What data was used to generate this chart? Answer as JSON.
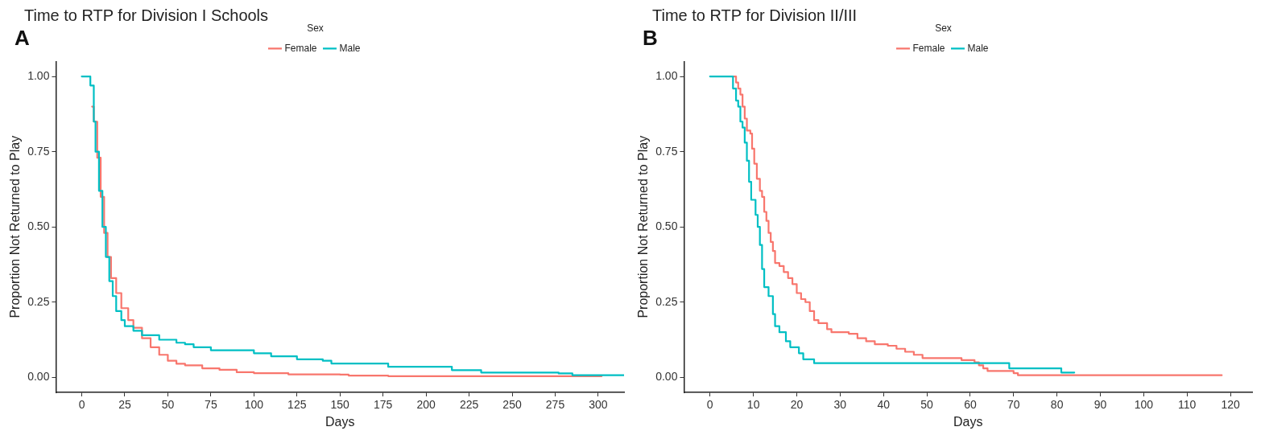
{
  "chart_data": [
    {
      "type": "step",
      "title": "Time to RTP for Division I Schools",
      "annotations": [
        "A"
      ],
      "xlabel": "Days",
      "ylabel": "Proportion Not Returned to Play",
      "legend_title": "Sex",
      "legend": "top",
      "grid": false,
      "xlim": [
        -15,
        315
      ],
      "ylim": [
        -0.05,
        1.05
      ],
      "xticks": [
        0,
        25,
        50,
        75,
        100,
        125,
        150,
        175,
        200,
        225,
        250,
        275,
        300
      ],
      "yticks": [
        {
          "value": 0,
          "label": "0.00"
        },
        {
          "value": 0.25,
          "label": "0.25"
        },
        {
          "value": 0.5,
          "label": "0.50"
        },
        {
          "value": 0.75,
          "label": "0.75"
        },
        {
          "value": 1,
          "label": "1.00"
        }
      ],
      "series": [
        {
          "name": "Female",
          "color": "#f8766d",
          "x": [
            6,
            7,
            9,
            11,
            13,
            15,
            17,
            20,
            23,
            27,
            30,
            35,
            40,
            45,
            50,
            55,
            60,
            70,
            80,
            90,
            100,
            120,
            150,
            155,
            178,
            302
          ],
          "values": [
            0.9,
            0.85,
            0.73,
            0.6,
            0.48,
            0.4,
            0.33,
            0.28,
            0.23,
            0.19,
            0.165,
            0.13,
            0.1,
            0.075,
            0.055,
            0.045,
            0.04,
            0.03,
            0.025,
            0.017,
            0.014,
            0.01,
            0.009,
            0.006,
            0.004,
            0.004
          ]
        },
        {
          "name": "Male",
          "color": "#00bfc4",
          "x": [
            0,
            3,
            5,
            7,
            8,
            10,
            12,
            14,
            16,
            18,
            20,
            23,
            25,
            30,
            35,
            45,
            55,
            60,
            65,
            75,
            95,
            100,
            110,
            125,
            140,
            145,
            178,
            215,
            232,
            277,
            285,
            315
          ],
          "values": [
            1,
            1,
            0.97,
            0.85,
            0.75,
            0.62,
            0.5,
            0.4,
            0.32,
            0.27,
            0.22,
            0.19,
            0.17,
            0.155,
            0.14,
            0.125,
            0.115,
            0.11,
            0.1,
            0.09,
            0.09,
            0.08,
            0.07,
            0.06,
            0.055,
            0.046,
            0.035,
            0.024,
            0.016,
            0.013,
            0.007,
            0.007
          ]
        }
      ]
    },
    {
      "type": "step",
      "title": "Time to RTP for Division II/III",
      "annotations": [
        "B"
      ],
      "xlabel": "Days",
      "ylabel": "Proportion Not Returned to Play",
      "legend_title": "Sex",
      "legend": "top",
      "grid": false,
      "xlim": [
        -6,
        125
      ],
      "ylim": [
        -0.05,
        1.05
      ],
      "xticks": [
        0,
        10,
        20,
        30,
        40,
        50,
        60,
        70,
        80,
        90,
        100,
        110,
        120
      ],
      "yticks": [
        {
          "value": 0,
          "label": "0.00"
        },
        {
          "value": 0.25,
          "label": "0.25"
        },
        {
          "value": 0.5,
          "label": "0.50"
        },
        {
          "value": 0.75,
          "label": "0.75"
        },
        {
          "value": 1,
          "label": "1.00"
        }
      ],
      "series": [
        {
          "name": "Female",
          "color": "#f8766d",
          "x": [
            5.5,
            6,
            6.5,
            7,
            7.5,
            8,
            8.5,
            9.3,
            9.7,
            10.2,
            10.8,
            11.5,
            12,
            12.5,
            13,
            13.5,
            14,
            14.5,
            15,
            16,
            17,
            18,
            19,
            20,
            21,
            22,
            23,
            24,
            25,
            27,
            28,
            32,
            34,
            36,
            38,
            41,
            43,
            45,
            47,
            49,
            58,
            61,
            62,
            63,
            64,
            70,
            71,
            118
          ],
          "values": [
            1,
            0.98,
            0.96,
            0.94,
            0.9,
            0.86,
            0.82,
            0.81,
            0.76,
            0.71,
            0.66,
            0.62,
            0.6,
            0.55,
            0.52,
            0.48,
            0.45,
            0.42,
            0.38,
            0.37,
            0.35,
            0.33,
            0.31,
            0.28,
            0.26,
            0.25,
            0.22,
            0.19,
            0.18,
            0.16,
            0.15,
            0.145,
            0.13,
            0.12,
            0.11,
            0.105,
            0.095,
            0.085,
            0.075,
            0.064,
            0.057,
            0.05,
            0.04,
            0.03,
            0.021,
            0.014,
            0.007,
            0.007
          ]
        },
        {
          "name": "Male",
          "color": "#00bfc4",
          "x": [
            0,
            5.3,
            6,
            6.5,
            7,
            7.5,
            8,
            8.5,
            9,
            9.5,
            10.5,
            11,
            11.5,
            12,
            12.5,
            13.5,
            14.5,
            15,
            16,
            17.5,
            18.5,
            20.5,
            21.5,
            24,
            69,
            81,
            84
          ],
          "values": [
            1,
            0.96,
            0.92,
            0.9,
            0.85,
            0.83,
            0.78,
            0.72,
            0.65,
            0.59,
            0.54,
            0.5,
            0.44,
            0.36,
            0.3,
            0.27,
            0.21,
            0.17,
            0.15,
            0.12,
            0.1,
            0.08,
            0.06,
            0.047,
            0.03,
            0.016,
            0.016
          ]
        }
      ]
    }
  ]
}
